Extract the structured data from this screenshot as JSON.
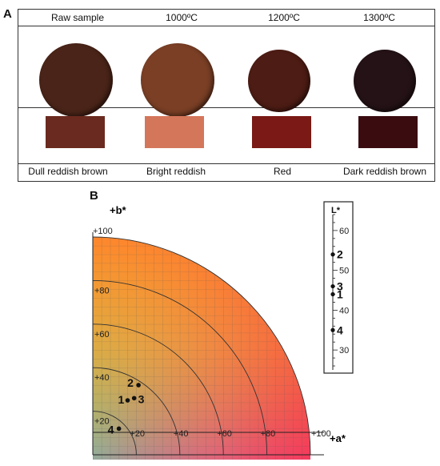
{
  "panelA": {
    "letter": "A",
    "headers": [
      "Raw sample",
      "1000ºC",
      "1200ºC",
      "1300ºC"
    ],
    "labels": [
      "Dull reddish brown",
      "Bright reddish",
      "Red",
      "Dark reddish brown"
    ],
    "sample_colors": [
      "#4a2418",
      "#7a3f25",
      "#4d1c14",
      "#241216"
    ],
    "swatch_colors": [
      "#6b2a1f",
      "#d4765a",
      "#7a1915",
      "#3a0c10"
    ]
  },
  "panelB": {
    "letter": "B"
  },
  "chart_data": {
    "type": "scatter",
    "title": "",
    "xlabel": "+a*",
    "ylabel": "+b*",
    "x_ticks": [
      "+20",
      "+40",
      "+60",
      "+80",
      "+100"
    ],
    "y_ticks": [
      "+20",
      "+40",
      "+60",
      "+80",
      "+100"
    ],
    "xlim": [
      0,
      100
    ],
    "ylim": [
      0,
      100
    ],
    "points": [
      {
        "label": "1",
        "a": 16,
        "b": 25
      },
      {
        "label": "2",
        "a": 21,
        "b": 32
      },
      {
        "label": "3",
        "a": 19,
        "b": 26
      },
      {
        "label": "4",
        "a": 12,
        "b": 12
      }
    ],
    "L_scale": {
      "label": "L*",
      "ticks": [
        "60",
        "50",
        "40",
        "30"
      ],
      "range": [
        25,
        64
      ],
      "points": [
        {
          "label": "2",
          "value": 54
        },
        {
          "label": "3",
          "value": 46
        },
        {
          "label": "1",
          "value": 44
        },
        {
          "label": "4",
          "value": 35
        }
      ]
    }
  }
}
